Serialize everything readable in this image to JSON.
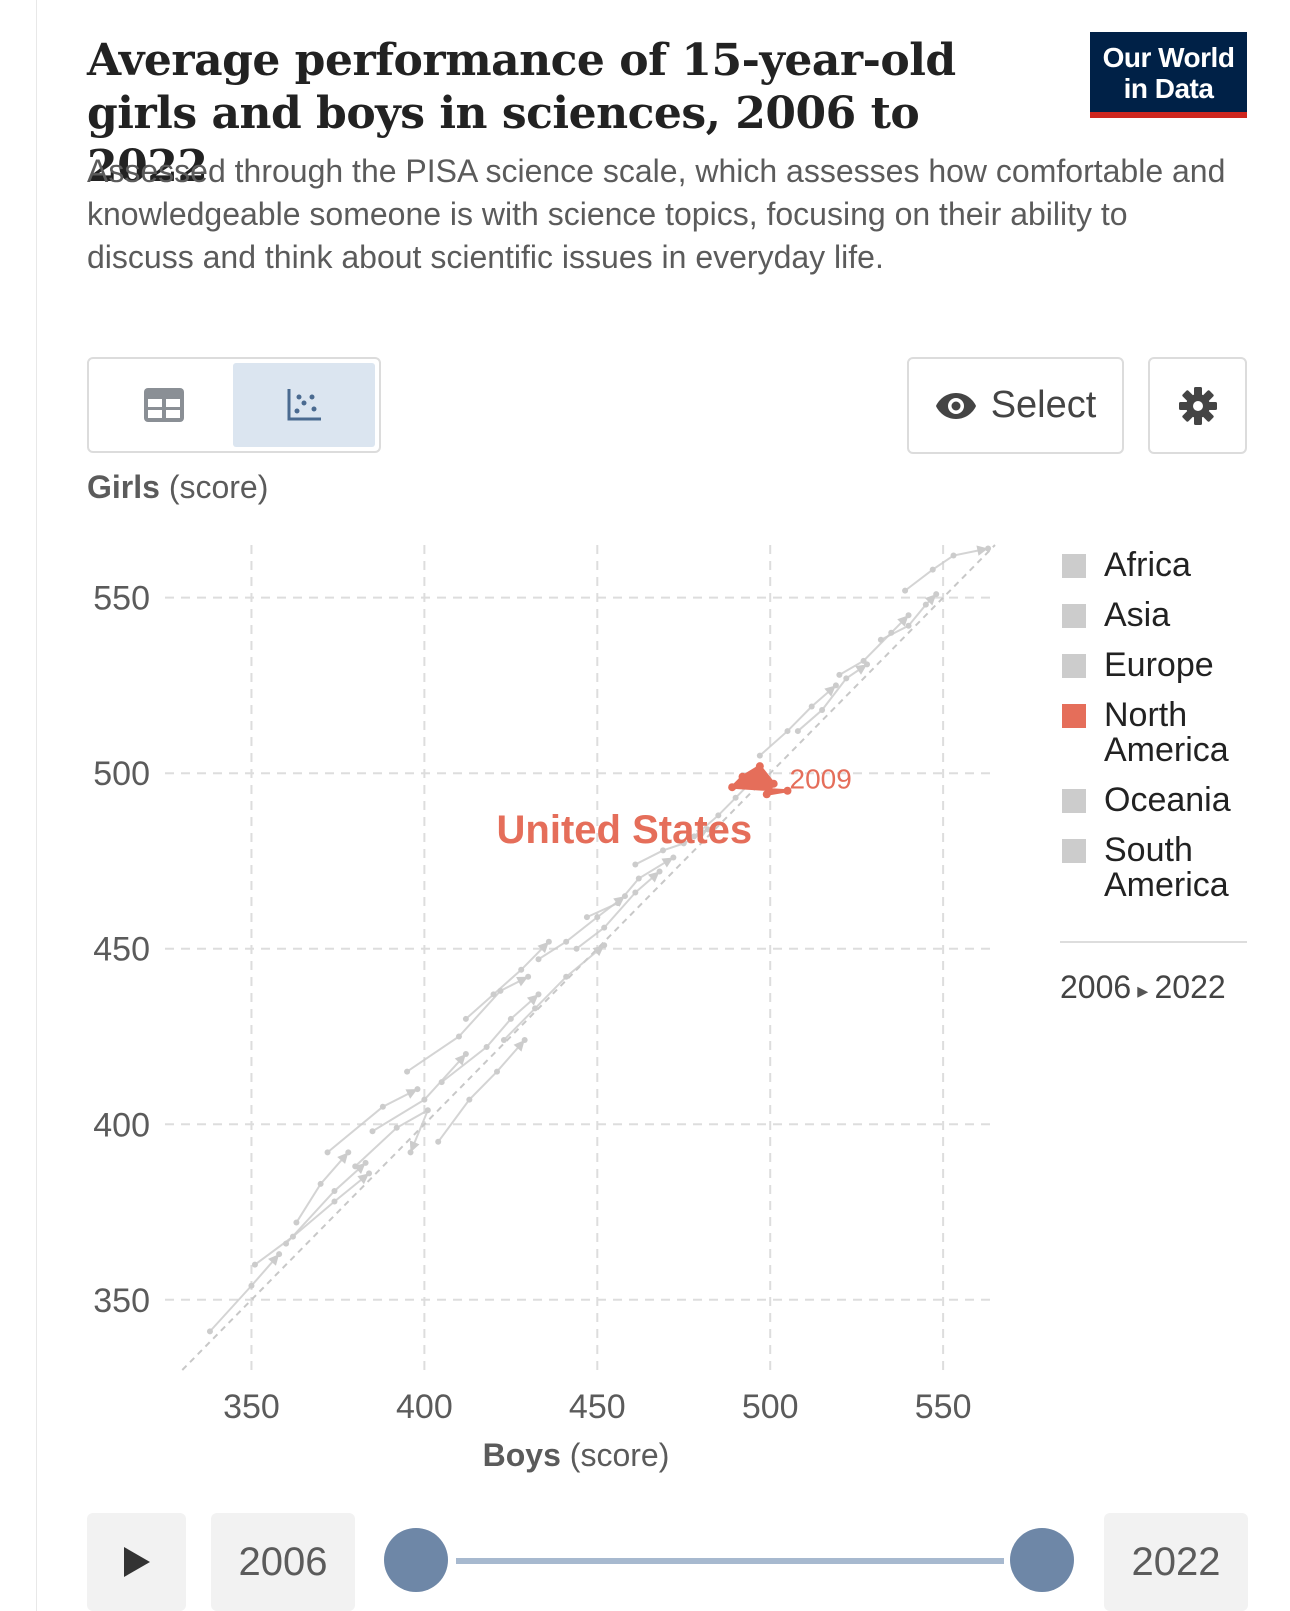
{
  "header": {
    "title": "Average performance of 15-year-old girls and boys in sciences, 2006 to 2022",
    "subtitle": "Assessed through the PISA science scale, which assesses how comfortable and knowledgeable someone is with science topics, focusing on their ability to discuss and think about scientific issues in everyday life.",
    "logo_line1": "Our World",
    "logo_line2": "in Data"
  },
  "controls": {
    "table_icon": "table-icon",
    "chart_icon": "scatter-icon",
    "select_label": "Select",
    "select_icon": "eye-icon",
    "settings_icon": "gear-icon"
  },
  "timeline": {
    "start_year": "2006",
    "end_year": "2022",
    "play_icon": "play-icon"
  },
  "colors": {
    "highlight": "#e56e5a",
    "muted": "#cccccc",
    "grid": "#dddddd",
    "brand": "#002147",
    "brand_accent": "#ce261e"
  },
  "chart_data": {
    "type": "scatter",
    "title": "Average performance of 15-year-old girls and boys in sciences, 2006 to 2022",
    "xlabel_bold": "Boys",
    "xlabel_unit": " (score)",
    "ylabel_bold": "Girls",
    "ylabel_unit": " (score)",
    "xlim": [
      325,
      565
    ],
    "ylim": [
      330,
      565
    ],
    "x_ticks": [
      350,
      400,
      450,
      500,
      550
    ],
    "y_ticks": [
      350,
      400,
      450,
      500,
      550
    ],
    "grid": true,
    "legend_position": "right",
    "legend": [
      {
        "name": "Africa",
        "color": "#cccccc"
      },
      {
        "name": "Asia",
        "color": "#cccccc"
      },
      {
        "name": "Europe",
        "color": "#cccccc"
      },
      {
        "name": "North",
        "name2": "America",
        "color": "#e56e5a"
      },
      {
        "name": "Oceania",
        "color": "#cccccc"
      },
      {
        "name": "South",
        "name2": "America",
        "color": "#cccccc"
      }
    ],
    "time_range_label_start": "2006",
    "time_range_label_end": "2022",
    "highlight_series": {
      "name": "United States",
      "point_label": "2009",
      "points": [
        [
          489,
          496
        ],
        [
          492,
          499
        ],
        [
          497,
          502
        ],
        [
          501,
          497
        ],
        [
          499,
          494
        ],
        [
          505,
          495
        ]
      ]
    },
    "background_series": [
      [
        [
          380,
          388
        ],
        [
          392,
          399
        ],
        [
          401,
          404
        ],
        [
          396,
          392
        ]
      ],
      [
        [
          351,
          360
        ],
        [
          362,
          368
        ],
        [
          374,
          378
        ],
        [
          384,
          386
        ]
      ],
      [
        [
          405,
          412
        ],
        [
          418,
          422
        ],
        [
          425,
          430
        ],
        [
          433,
          437
        ]
      ],
      [
        [
          444,
          450
        ],
        [
          452,
          456
        ],
        [
          461,
          466
        ],
        [
          468,
          472
        ]
      ],
      [
        [
          478,
          482
        ],
        [
          485,
          488
        ],
        [
          490,
          493
        ],
        [
          496,
          499
        ]
      ],
      [
        [
          508,
          512
        ],
        [
          515,
          518
        ],
        [
          522,
          527
        ],
        [
          528,
          531
        ]
      ],
      [
        [
          532,
          538
        ],
        [
          540,
          542
        ],
        [
          545,
          548
        ],
        [
          548,
          551
        ]
      ],
      [
        [
          520,
          528
        ],
        [
          527,
          532
        ],
        [
          535,
          540
        ],
        [
          540,
          545
        ]
      ],
      [
        [
          395,
          415
        ],
        [
          410,
          425
        ],
        [
          422,
          438
        ],
        [
          430,
          442
        ]
      ],
      [
        [
          372,
          392
        ],
        [
          388,
          405
        ],
        [
          398,
          410
        ]
      ],
      [
        [
          447,
          459
        ],
        [
          456,
          463
        ],
        [
          462,
          470
        ],
        [
          472,
          476
        ]
      ],
      [
        [
          412,
          430
        ],
        [
          420,
          437
        ],
        [
          428,
          444
        ],
        [
          436,
          452
        ]
      ],
      [
        [
          385,
          398
        ],
        [
          400,
          407
        ],
        [
          412,
          420
        ]
      ],
      [
        [
          338,
          341
        ],
        [
          350,
          354
        ],
        [
          358,
          363
        ]
      ],
      [
        [
          423,
          424
        ],
        [
          432,
          433
        ],
        [
          441,
          442
        ],
        [
          452,
          451
        ]
      ],
      [
        [
          497,
          505
        ],
        [
          505,
          512
        ],
        [
          512,
          519
        ],
        [
          519,
          525
        ]
      ],
      [
        [
          363,
          372
        ],
        [
          370,
          383
        ],
        [
          378,
          392
        ]
      ],
      [
        [
          461,
          474
        ],
        [
          469,
          478
        ],
        [
          475,
          480
        ],
        [
          482,
          484
        ]
      ],
      [
        [
          360,
          366
        ],
        [
          374,
          381
        ],
        [
          383,
          389
        ]
      ],
      [
        [
          539,
          552
        ],
        [
          547,
          558
        ],
        [
          553,
          562
        ],
        [
          563,
          564
        ]
      ],
      [
        [
          433,
          447
        ],
        [
          441,
          452
        ],
        [
          450,
          459
        ],
        [
          458,
          465
        ]
      ],
      [
        [
          404,
          395
        ],
        [
          413,
          407
        ],
        [
          421,
          415
        ],
        [
          429,
          424
        ]
      ]
    ],
    "diagonal": [
      [
        330,
        330
      ],
      [
        565,
        565
      ]
    ]
  }
}
